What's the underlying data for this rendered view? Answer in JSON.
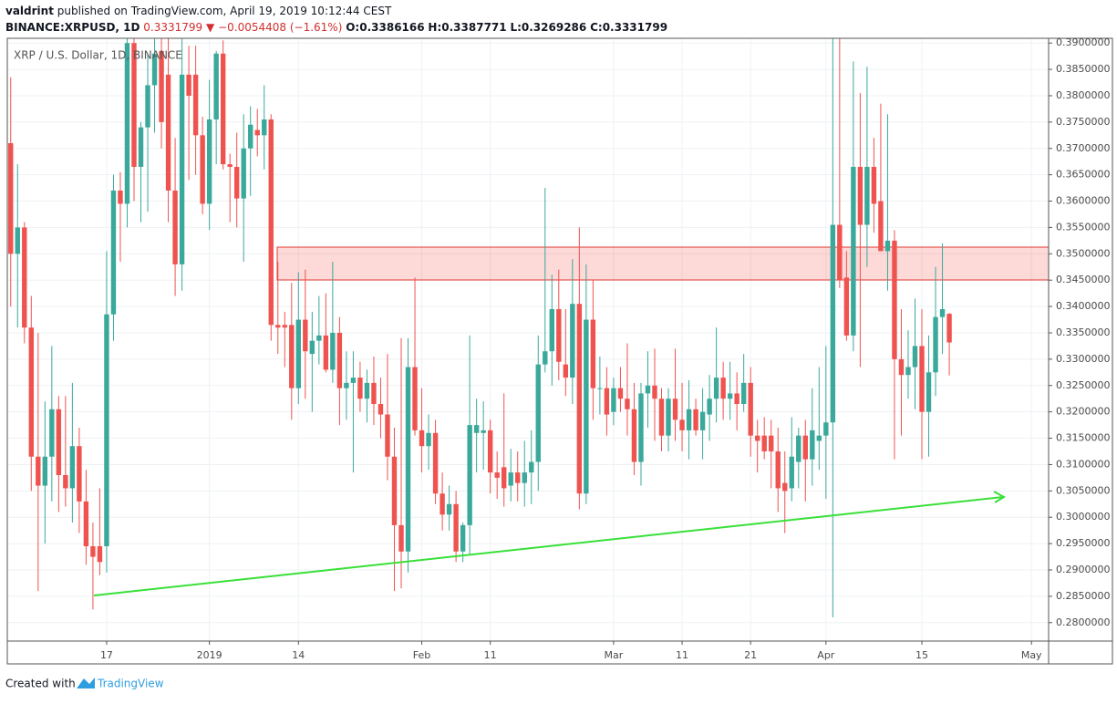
{
  "header": {
    "author": "valdrint",
    "published": "published on TradingView.com, April 19, 2019 10:12:44 CEST",
    "symbol": "BINANCE:XRPUSD, 1D",
    "last": "0.3331799",
    "arrow": "▼",
    "change": "−0.0054408 (−1.61%)",
    "open": "O:0.3386166",
    "high": "H:0.3387771",
    "low": "L:0.3269286",
    "close": "C:0.3331799"
  },
  "chart_data": {
    "type": "candlestick",
    "legend": "XRP / U.S. Dollar, 1D, BINANCE",
    "up_color": "#3aa99b",
    "down_color": "#ef5350",
    "grid": true,
    "open": [
      0.371,
      0.35,
      0.355,
      0.336,
      0.3115,
      0.306,
      0.3115,
      0.3205,
      0.308,
      0.3055,
      0.3135,
      0.303,
      0.2945,
      0.2945,
      0.2945,
      0.3385,
      0.362,
      0.3595,
      0.39,
      0.3665,
      0.374,
      0.382,
      0.3885,
      0.384,
      0.362,
      0.348,
      0.384,
      0.384,
      0.3725,
      0.3595,
      0.3755,
      0.388,
      0.367,
      0.3665,
      0.3605,
      0.37,
      0.3735,
      0.3725,
      0.3755,
      0.3365,
      0.3365,
      0.3365,
      0.3245,
      0.3375,
      0.331,
      0.3335,
      0.3345,
      0.328,
      0.335,
      0.3245,
      0.3255,
      0.3265,
      0.3225,
      0.3255,
      0.3215,
      0.3195,
      0.3115,
      0.2985,
      0.2935,
      0.3285,
      0.3165,
      0.3135,
      0.316,
      0.3045,
      0.3005,
      0.3025,
      0.2935,
      0.2985,
      0.316,
      0.316,
      0.3165,
      0.3085,
      0.3095,
      0.306,
      0.3085,
      0.3065,
      0.3085,
      0.3105,
      0.329,
      0.3315,
      0.3395,
      0.329,
      0.3265,
      0.3405,
      0.3045,
      0.3375,
      0.3245,
      0.3245,
      0.32,
      0.3245,
      0.3225,
      0.3205,
      0.3105,
      0.3235,
      0.325,
      0.3225,
      0.3155,
      0.3225,
      0.3185,
      0.3165,
      0.3205,
      0.3165,
      0.3195,
      0.3225,
      0.3265,
      0.3225,
      0.3235,
      0.3215,
      0.3255,
      0.3155,
      0.3155,
      0.3155,
      0.3125,
      0.3065,
      0.3055,
      0.3105,
      0.3155,
      0.311,
      0.3145,
      0.3155,
      0.318,
      0.3555,
      0.3455,
      0.3345,
      0.3665,
      0.3555,
      0.3665,
      0.36,
      0.3505,
      0.3525,
      0.33,
      0.327,
      0.3285,
      0.3325,
      0.32,
      0.3275,
      0.338,
      0.3386166
    ],
    "high": [
      0.3835,
      0.367,
      0.356,
      0.342,
      0.335,
      0.322,
      0.3325,
      0.323,
      0.323,
      0.3255,
      0.317,
      0.309,
      0.299,
      0.3055,
      0.3505,
      0.365,
      0.3655,
      0.394,
      0.392,
      0.375,
      0.388,
      0.393,
      0.392,
      0.392,
      0.372,
      0.392,
      0.3895,
      0.3895,
      0.376,
      0.383,
      0.3885,
      0.3905,
      0.369,
      0.373,
      0.3765,
      0.378,
      0.3775,
      0.382,
      0.3765,
      0.3485,
      0.339,
      0.3445,
      0.3465,
      0.347,
      0.339,
      0.342,
      0.3425,
      0.3485,
      0.338,
      0.3315,
      0.3315,
      0.3295,
      0.328,
      0.3305,
      0.3265,
      0.331,
      0.317,
      0.334,
      0.334,
      0.3455,
      0.3245,
      0.3195,
      0.3185,
      0.3085,
      0.306,
      0.305,
      0.299,
      0.3345,
      0.3225,
      0.322,
      0.3185,
      0.3125,
      0.3235,
      0.313,
      0.3125,
      0.3145,
      0.3165,
      0.3345,
      0.3625,
      0.346,
      0.347,
      0.3395,
      0.349,
      0.355,
      0.348,
      0.345,
      0.3305,
      0.3285,
      0.3265,
      0.3285,
      0.333,
      0.3255,
      0.3255,
      0.3315,
      0.332,
      0.3245,
      0.3245,
      0.332,
      0.3255,
      0.326,
      0.3225,
      0.3245,
      0.327,
      0.336,
      0.3295,
      0.3295,
      0.3275,
      0.331,
      0.3285,
      0.3185,
      0.319,
      0.3185,
      0.317,
      0.3125,
      0.319,
      0.317,
      0.3185,
      0.3245,
      0.3285,
      0.3325,
      0.3915,
      0.3915,
      0.3505,
      0.3865,
      0.3805,
      0.3855,
      0.372,
      0.3785,
      0.3765,
      0.3545,
      0.3395,
      0.3355,
      0.3415,
      0.3395,
      0.3345,
      0.3475,
      0.352,
      0.3387771
    ],
    "low": [
      0.34,
      0.336,
      0.333,
      0.305,
      0.286,
      0.295,
      0.303,
      0.301,
      0.302,
      0.299,
      0.297,
      0.291,
      0.2825,
      0.289,
      0.2895,
      0.3335,
      0.3485,
      0.355,
      0.36,
      0.356,
      0.358,
      0.373,
      0.37,
      0.356,
      0.342,
      0.343,
      0.364,
      0.365,
      0.3575,
      0.3545,
      0.367,
      0.366,
      0.356,
      0.355,
      0.3485,
      0.361,
      0.3685,
      0.366,
      0.3335,
      0.331,
      0.3285,
      0.3185,
      0.3215,
      0.3225,
      0.32,
      0.329,
      0.3275,
      0.3255,
      0.3175,
      0.3185,
      0.3085,
      0.32,
      0.318,
      0.3175,
      0.315,
      0.307,
      0.286,
      0.2865,
      0.2895,
      0.3155,
      0.3085,
      0.309,
      0.3025,
      0.2975,
      0.2975,
      0.2915,
      0.2915,
      0.293,
      0.3085,
      0.309,
      0.3045,
      0.3035,
      0.302,
      0.303,
      0.303,
      0.302,
      0.3025,
      0.305,
      0.3275,
      0.325,
      0.326,
      0.323,
      0.3215,
      0.3015,
      0.3025,
      0.3185,
      0.3195,
      0.3155,
      0.3175,
      0.32,
      0.3155,
      0.308,
      0.306,
      0.317,
      0.3145,
      0.3125,
      0.3125,
      0.3145,
      0.3125,
      0.311,
      0.3155,
      0.311,
      0.3145,
      0.318,
      0.3185,
      0.3185,
      0.3165,
      0.32,
      0.3115,
      0.3085,
      0.311,
      0.3055,
      0.301,
      0.297,
      0.303,
      0.3055,
      0.303,
      0.306,
      0.309,
      0.3035,
      0.281,
      0.3435,
      0.3335,
      0.3315,
      0.3285,
      0.3475,
      0.354,
      0.3505,
      0.343,
      0.311,
      0.3155,
      0.3225,
      0.3205,
      0.311,
      0.3115,
      0.323,
      0.331,
      0.3269286
    ],
    "close": [
      0.35,
      0.355,
      0.336,
      0.3115,
      0.306,
      0.3115,
      0.3205,
      0.308,
      0.3055,
      0.3135,
      0.303,
      0.2945,
      0.2925,
      0.2915,
      0.3385,
      0.362,
      0.3595,
      0.39,
      0.3665,
      0.374,
      0.382,
      0.388,
      0.375,
      0.362,
      0.348,
      0.384,
      0.38,
      0.3725,
      0.3595,
      0.3755,
      0.388,
      0.367,
      0.3665,
      0.3605,
      0.37,
      0.3745,
      0.3725,
      0.3755,
      0.3365,
      0.336,
      0.336,
      0.3245,
      0.3375,
      0.3315,
      0.3335,
      0.3345,
      0.328,
      0.335,
      0.3245,
      0.3255,
      0.3265,
      0.3225,
      0.3255,
      0.3215,
      0.3195,
      0.3115,
      0.2985,
      0.2935,
      0.3285,
      0.3165,
      0.3135,
      0.316,
      0.3045,
      0.3005,
      0.3025,
      0.2935,
      0.2985,
      0.3175,
      0.3175,
      0.3165,
      0.3085,
      0.3075,
      0.3055,
      0.3085,
      0.3065,
      0.3085,
      0.3105,
      0.329,
      0.3315,
      0.3395,
      0.3295,
      0.3265,
      0.3405,
      0.3045,
      0.3375,
      0.3245,
      0.3245,
      0.3195,
      0.3245,
      0.3225,
      0.3205,
      0.3105,
      0.3235,
      0.325,
      0.3225,
      0.3155,
      0.3225,
      0.3185,
      0.3165,
      0.3205,
      0.3165,
      0.32,
      0.3225,
      0.3265,
      0.3225,
      0.3235,
      0.3215,
      0.3255,
      0.3155,
      0.3145,
      0.3125,
      0.3125,
      0.3055,
      0.305,
      0.3115,
      0.3155,
      0.311,
      0.3165,
      0.3155,
      0.318,
      0.3555,
      0.345,
      0.3345,
      0.3665,
      0.3555,
      0.3665,
      0.3595,
      0.3505,
      0.3525,
      0.33,
      0.327,
      0.3285,
      0.3325,
      0.32,
      0.3275,
      0.338,
      0.3395,
      0.3331799
    ],
    "xlim": [
      -0.5,
      151.5
    ],
    "xticks": [
      {
        "value": 14,
        "label": "17"
      },
      {
        "value": 29,
        "label": "2019"
      },
      {
        "value": 42,
        "label": "14"
      },
      {
        "value": 60,
        "label": "Feb"
      },
      {
        "value": 70,
        "label": "11"
      },
      {
        "value": 88,
        "label": "Mar"
      },
      {
        "value": 98,
        "label": "11"
      },
      {
        "value": 108,
        "label": "21"
      },
      {
        "value": 119,
        "label": "Apr"
      },
      {
        "value": 133,
        "label": "15"
      },
      {
        "value": 149,
        "label": "May"
      }
    ],
    "ylim": [
      0.2765,
      0.3909
    ],
    "yticks": [
      {
        "value": 0.28,
        "label": "0.2800000"
      },
      {
        "value": 0.285,
        "label": "0.2850000"
      },
      {
        "value": 0.29,
        "label": "0.2900000"
      },
      {
        "value": 0.295,
        "label": "0.2950000"
      },
      {
        "value": 0.3,
        "label": "0.3000000"
      },
      {
        "value": 0.305,
        "label": "0.3050000"
      },
      {
        "value": 0.31,
        "label": "0.3100000"
      },
      {
        "value": 0.315,
        "label": "0.3150000"
      },
      {
        "value": 0.32,
        "label": "0.3200000"
      },
      {
        "value": 0.325,
        "label": "0.3250000"
      },
      {
        "value": 0.33,
        "label": "0.3300000"
      },
      {
        "value": 0.335,
        "label": "0.3350000"
      },
      {
        "value": 0.34,
        "label": "0.3400000"
      },
      {
        "value": 0.345,
        "label": "0.3450000"
      },
      {
        "value": 0.35,
        "label": "0.3500000"
      },
      {
        "value": 0.355,
        "label": "0.3550000"
      },
      {
        "value": 0.36,
        "label": "0.3600000"
      },
      {
        "value": 0.365,
        "label": "0.3650000"
      },
      {
        "value": 0.37,
        "label": "0.3700000"
      },
      {
        "value": 0.375,
        "label": "0.3750000"
      },
      {
        "value": 0.38,
        "label": "0.3800000"
      },
      {
        "value": 0.385,
        "label": "0.3850000"
      },
      {
        "value": 0.39,
        "label": "0.3900000"
      }
    ]
  },
  "footer": {
    "created": "Created with",
    "brand": "TradingView"
  }
}
